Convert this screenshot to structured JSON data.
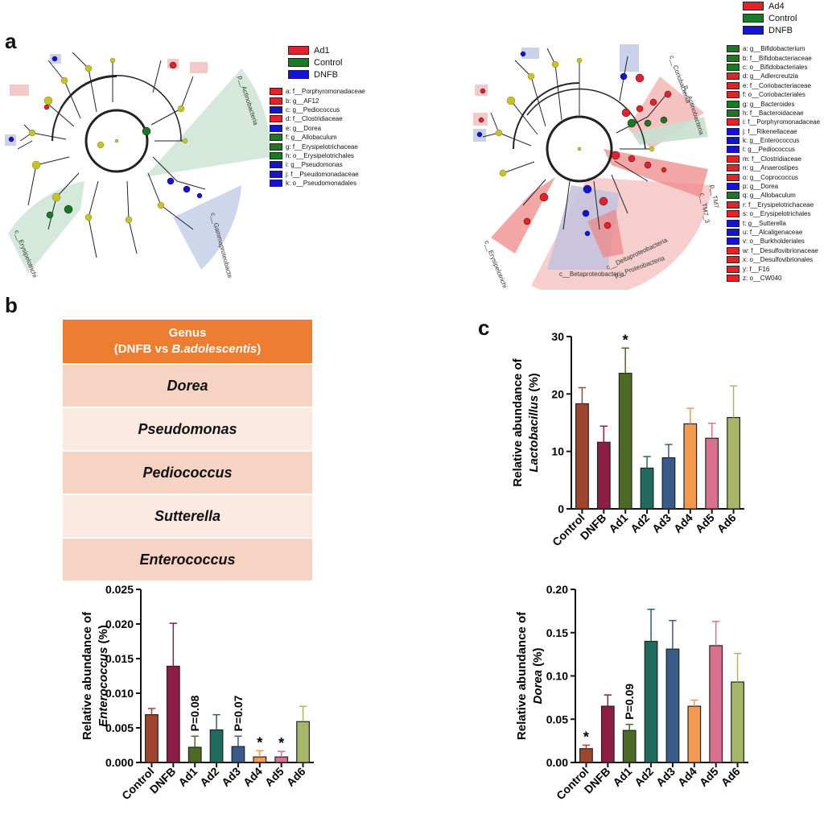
{
  "panels": {
    "a": "a",
    "b": "b",
    "c": "c"
  },
  "cladogram_left": {
    "group_legend": [
      {
        "label": "Ad1",
        "color": "#e8202a"
      },
      {
        "label": "Control",
        "color": "#1a7a22"
      },
      {
        "label": "DNFB",
        "color": "#1212d8"
      }
    ],
    "taxa": [
      {
        "label": "a: f__Porphyromonadaceae",
        "color": "#e8202a"
      },
      {
        "label": "b: g__AF12",
        "color": "#e8202a"
      },
      {
        "label": "c: g__Pediococcus",
        "color": "#1212d8"
      },
      {
        "label": "d: f__Clostridiaceae",
        "color": "#e8202a"
      },
      {
        "label": "e: g__Dorea",
        "color": "#1212d8"
      },
      {
        "label": "f: g__Allobaculum",
        "color": "#1a7a22"
      },
      {
        "label": "g: f__Erysipelotrichaceae",
        "color": "#1a7a22"
      },
      {
        "label": "h: o__Erysipelotrichales",
        "color": "#1a7a22"
      },
      {
        "label": "i: g__Pseudomonas",
        "color": "#1212d8"
      },
      {
        "label": "j: f__Pseudomonadaceae",
        "color": "#1212d8"
      },
      {
        "label": "k: o__Pseudomonadales",
        "color": "#1212d8"
      }
    ],
    "clade_labels": [
      "p__Actinobacteria",
      "c__Gammaproteobacteria",
      "c__Erysipelotrichi"
    ]
  },
  "cladogram_right": {
    "group_legend": [
      {
        "label": "Ad4",
        "color": "#e8202a"
      },
      {
        "label": "Control",
        "color": "#1a7a22"
      },
      {
        "label": "DNFB",
        "color": "#1212d8"
      }
    ],
    "taxa": [
      {
        "label": "a: g__Bifidobacterium",
        "color": "#1a7a22"
      },
      {
        "label": "b: f__Bifidobacteriaceae",
        "color": "#1a7a22"
      },
      {
        "label": "c: o__Bifidobacteriales",
        "color": "#1a7a22"
      },
      {
        "label": "d: g__Adlercreutzia",
        "color": "#e8202a"
      },
      {
        "label": "e: f__Coriobacteriaceae",
        "color": "#e8202a"
      },
      {
        "label": "f: o__Coriobacteriales",
        "color": "#e8202a"
      },
      {
        "label": "g: g__Bacteroides",
        "color": "#1a7a22"
      },
      {
        "label": "h: f__Bacteroidaceae",
        "color": "#1a7a22"
      },
      {
        "label": "i: f__Porphyromonadaceae",
        "color": "#e8202a"
      },
      {
        "label": "j: f__Rikenellaceae",
        "color": "#1212d8"
      },
      {
        "label": "k: g__Enterococcus",
        "color": "#1212d8"
      },
      {
        "label": "l: g__Pediococcus",
        "color": "#1212d8"
      },
      {
        "label": "m: f__Clostridiaceae",
        "color": "#e8202a"
      },
      {
        "label": "n: g__Anaerostipes",
        "color": "#e8202a"
      },
      {
        "label": "o: g__Coprococcus",
        "color": "#e8202a"
      },
      {
        "label": "p: g__Dorea",
        "color": "#1212d8"
      },
      {
        "label": "q: g__Allobaculum",
        "color": "#1a7a22"
      },
      {
        "label": "r: f__Erysipelotrichaceae",
        "color": "#e8202a"
      },
      {
        "label": "s: o__Erysipelotrichales",
        "color": "#e8202a"
      },
      {
        "label": "t: g__Sutterella",
        "color": "#1212d8"
      },
      {
        "label": "u: f__Alcaligenaceae",
        "color": "#1212d8"
      },
      {
        "label": "v: o__Burkholderiales",
        "color": "#1212d8"
      },
      {
        "label": "w: f__Desulfovibrionaceae",
        "color": "#e8202a"
      },
      {
        "label": "x: o__Desulfovibrionales",
        "color": "#e8202a"
      },
      {
        "label": "y: f__F16",
        "color": "#e8202a"
      },
      {
        "label": "z: o__CW040",
        "color": "#e8202a"
      }
    ],
    "clade_labels": [
      "c__Coriobacteriia",
      "p__Actinobacteria",
      "p__TM7",
      "c__TM7_3",
      "c__Erysipelotrichi",
      "c__Betaproteobacteria",
      "c__Deltaproteobacteria",
      "p__Proteobacteria"
    ]
  },
  "genus_table": {
    "header_line1": "Genus",
    "header_line2_pre": "(DNFB vs ",
    "header_line2_italic": "B.adolescentis",
    "header_line2_post": ")",
    "rows": [
      "Dorea",
      "Pseudomonas",
      "Pediococcus",
      "Sutterella",
      "Enterococcus"
    ]
  },
  "chart_data": [
    {
      "type": "bar",
      "id": "lactobacillus",
      "categories": [
        "Control",
        "DNFB",
        "Ad1",
        "Ad2",
        "Ad3",
        "Ad4",
        "Ad5",
        "Ad6"
      ],
      "values": [
        18.3,
        11.6,
        23.6,
        7.1,
        8.9,
        14.8,
        12.3,
        15.9
      ],
      "errors": [
        2.8,
        2.8,
        4.4,
        2.0,
        2.3,
        2.7,
        2.6,
        5.5
      ],
      "annotations": [
        "",
        "",
        "*",
        "",
        "",
        "",
        "",
        ""
      ],
      "ylabel_pre": "Relative abundance of",
      "ylabel_italic": "Lactobacillus",
      "ylabel_post": " (%)",
      "ylim": [
        0,
        30
      ],
      "yticks": [
        0,
        10,
        20,
        30
      ],
      "ytick_labels": [
        "0",
        "10",
        "20",
        "30"
      ],
      "colors": [
        "#a0452d",
        "#8c1d45",
        "#4d6a22",
        "#1f6b5e",
        "#3a5a8a",
        "#f39a50",
        "#d9708e",
        "#a8b66a"
      ]
    },
    {
      "type": "bar",
      "id": "enterococcus",
      "categories": [
        "Control",
        "DNFB",
        "Ad1",
        "Ad2",
        "Ad3",
        "Ad4",
        "Ad5",
        "Ad6"
      ],
      "values": [
        0.0069,
        0.0139,
        0.0022,
        0.0047,
        0.0023,
        0.0008,
        0.0008,
        0.0059
      ],
      "errors": [
        0.0009,
        0.0062,
        0.0016,
        0.0022,
        0.0015,
        0.0009,
        0.0008,
        0.0022
      ],
      "annotations": [
        "",
        "",
        "P=0.08",
        "",
        "P=0.07",
        "*",
        "*",
        ""
      ],
      "ylabel_pre": "Relative abundance of",
      "ylabel_italic": "Enterococcus",
      "ylabel_post": " (%)",
      "ylim": [
        0,
        0.025
      ],
      "yticks": [
        0,
        0.005,
        0.01,
        0.015,
        0.02,
        0.025
      ],
      "ytick_labels": [
        "0.000",
        "0.005",
        "0.010",
        "0.015",
        "0.020",
        "0.025"
      ],
      "colors": [
        "#a0452d",
        "#8c1d45",
        "#4d6a22",
        "#1f6b5e",
        "#3a5a8a",
        "#f39a50",
        "#d9708e",
        "#a8b66a"
      ]
    },
    {
      "type": "bar",
      "id": "dorea",
      "categories": [
        "Control",
        "DNFB",
        "Ad1",
        "Ad2",
        "Ad3",
        "Ad4",
        "Ad5",
        "Ad6"
      ],
      "values": [
        0.016,
        0.065,
        0.037,
        0.14,
        0.131,
        0.065,
        0.135,
        0.093
      ],
      "errors": [
        0.004,
        0.013,
        0.007,
        0.037,
        0.033,
        0.007,
        0.028,
        0.033
      ],
      "annotations": [
        "*",
        "",
        "P=0.09",
        "",
        "",
        "",
        "",
        ""
      ],
      "ylabel_pre": "Relative abundance of",
      "ylabel_italic": "Dorea",
      "ylabel_post": " (%)",
      "ylim": [
        0,
        0.2
      ],
      "yticks": [
        0,
        0.05,
        0.1,
        0.15,
        0.2
      ],
      "ytick_labels": [
        "0.00",
        "0.05",
        "0.10",
        "0.15",
        "0.20"
      ],
      "colors": [
        "#a0452d",
        "#8c1d45",
        "#4d6a22",
        "#1f6b5e",
        "#3a5a8a",
        "#f39a50",
        "#d9708e",
        "#a8b66a"
      ]
    }
  ]
}
